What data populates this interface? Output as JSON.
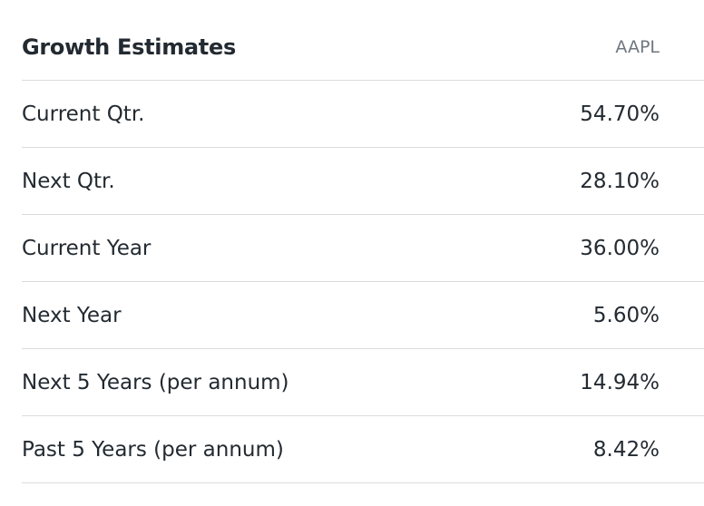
{
  "table": {
    "header": [
      "Growth Estimates",
      "AAPL"
    ],
    "rows": [
      [
        "Current Qtr.",
        "54.70%"
      ],
      [
        "Next Qtr.",
        "28.10%"
      ],
      [
        "Current Year",
        "36.00%"
      ],
      [
        "Next Year",
        "5.60%"
      ],
      [
        "Next 5 Years (per annum)",
        "14.94%"
      ],
      [
        "Past 5 Years (per annum)",
        "8.42%"
      ]
    ]
  }
}
